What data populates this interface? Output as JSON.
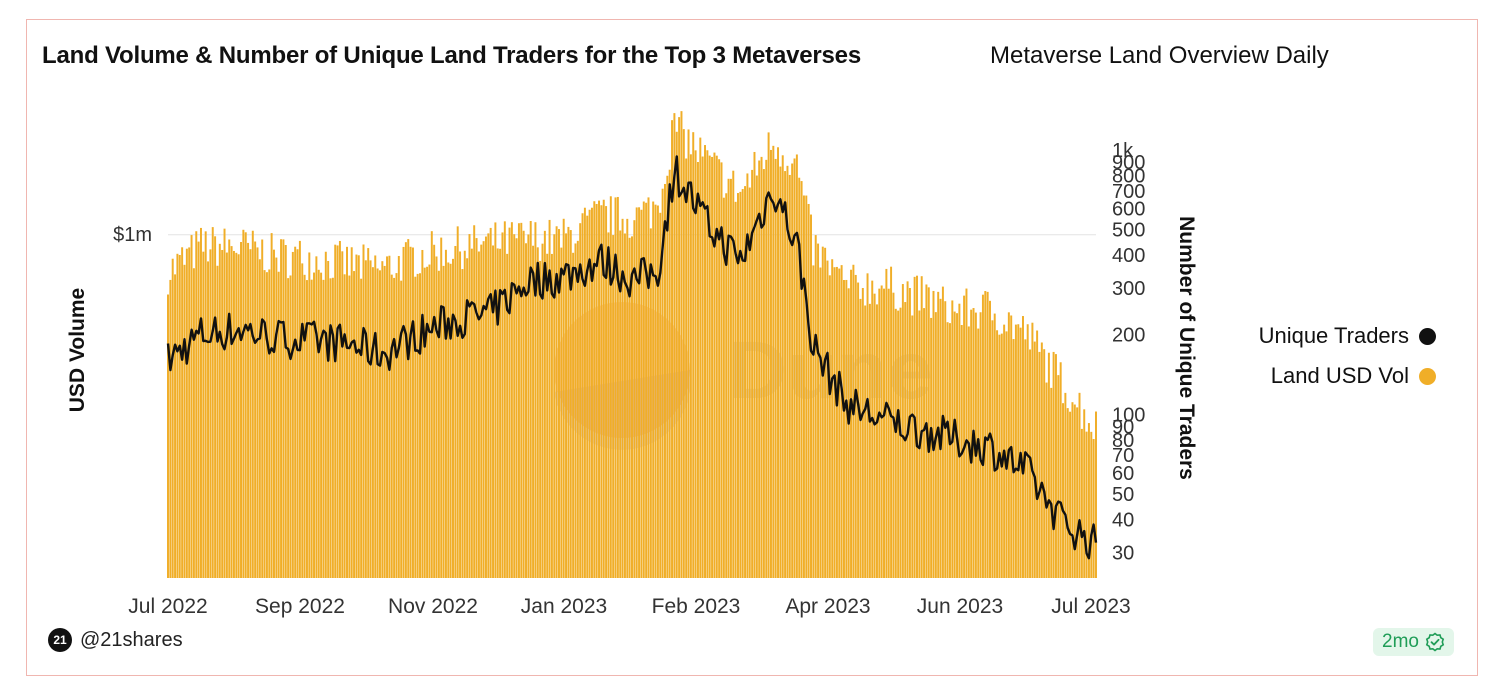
{
  "chart": {
    "title": "Land Volume & Number of Unique Land Traders for the Top 3 Metaverses",
    "subtitle": "Metaverse Land Overview Daily"
  },
  "footer": {
    "user": "@21shares",
    "avatar_text": "21",
    "age_badge": "2mo"
  },
  "watermark": "Dune",
  "colors": {
    "bars": "#f0ae28",
    "line": "#111111",
    "badge_bg": "#e3f6ea",
    "badge_fg": "#1f9d57"
  },
  "chart_data": {
    "type": "bar",
    "combo": "bars with line overlay, dual log axes",
    "x_range": [
      "2022-07-01",
      "2023-07-30"
    ],
    "x_ticks": [
      "Jul 2022",
      "Sep 2022",
      "Nov 2022",
      "Jan 2023",
      "Feb 2023",
      "Apr 2023",
      "Jun 2023",
      "Jul 2023"
    ],
    "y_left": {
      "label": "USD Volume",
      "scale": "log",
      "ticks": [
        "$1m"
      ],
      "tick_values": [
        1000000
      ]
    },
    "y_right": {
      "label": "Number of Unique Traders",
      "scale": "log",
      "ticks": [
        "30",
        "40",
        "50",
        "60",
        "70",
        "80",
        "90",
        "100",
        "200",
        "300",
        "400",
        "500",
        "600",
        "700",
        "800",
        "900",
        "1k"
      ],
      "tick_values": [
        30,
        40,
        50,
        60,
        70,
        80,
        90,
        100,
        200,
        300,
        400,
        500,
        600,
        700,
        800,
        900,
        1000
      ]
    },
    "legend": {
      "position": "right",
      "entries": [
        {
          "name": "Unique Traders",
          "color": "#111111"
        },
        {
          "name": "Land USD Vol",
          "color": "#f0ae28"
        }
      ]
    },
    "series": [
      {
        "name": "Land USD Vol",
        "type": "bar",
        "axis": "left",
        "points": [
          [
            "2022-07-01",
            650000
          ],
          [
            "2022-07-15",
            880000
          ],
          [
            "2022-08-01",
            870000
          ],
          [
            "2022-08-15",
            790000
          ],
          [
            "2022-09-01",
            760000
          ],
          [
            "2022-09-15",
            720000
          ],
          [
            "2022-10-01",
            680000
          ],
          [
            "2022-10-15",
            790000
          ],
          [
            "2022-11-01",
            860000
          ],
          [
            "2022-11-15",
            910000
          ],
          [
            "2022-12-01",
            960000
          ],
          [
            "2022-12-15",
            940000
          ],
          [
            "2023-01-01",
            1250000
          ],
          [
            "2023-01-15",
            1200000
          ],
          [
            "2023-01-25",
            1400000
          ],
          [
            "2023-02-01",
            3500000
          ],
          [
            "2023-02-15",
            2300000
          ],
          [
            "2023-03-01",
            1600000
          ],
          [
            "2023-03-15",
            2900000
          ],
          [
            "2023-03-25",
            2200000
          ],
          [
            "2023-04-01",
            860000
          ],
          [
            "2023-04-15",
            560000
          ],
          [
            "2023-05-01",
            560000
          ],
          [
            "2023-05-15",
            500000
          ],
          [
            "2023-06-01",
            420000
          ],
          [
            "2023-06-15",
            430000
          ],
          [
            "2023-07-01",
            320000
          ],
          [
            "2023-07-15",
            190000
          ],
          [
            "2023-07-30",
            110000
          ]
        ]
      },
      {
        "name": "Unique Traders",
        "type": "line",
        "axis": "right",
        "points": [
          [
            "2022-07-01",
            160
          ],
          [
            "2022-07-15",
            200
          ],
          [
            "2022-08-01",
            210
          ],
          [
            "2022-08-15",
            195
          ],
          [
            "2022-09-01",
            190
          ],
          [
            "2022-09-15",
            185
          ],
          [
            "2022-10-01",
            170
          ],
          [
            "2022-10-15",
            200
          ],
          [
            "2022-11-01",
            230
          ],
          [
            "2022-11-15",
            240
          ],
          [
            "2022-12-01",
            320
          ],
          [
            "2022-12-15",
            330
          ],
          [
            "2023-01-01",
            380
          ],
          [
            "2023-01-15",
            320
          ],
          [
            "2023-01-25",
            350
          ],
          [
            "2023-02-01",
            850
          ],
          [
            "2023-02-15",
            520
          ],
          [
            "2023-03-01",
            380
          ],
          [
            "2023-03-15",
            720
          ],
          [
            "2023-03-25",
            440
          ],
          [
            "2023-04-01",
            180
          ],
          [
            "2023-04-15",
            110
          ],
          [
            "2023-05-01",
            95
          ],
          [
            "2023-05-15",
            88
          ],
          [
            "2023-06-01",
            80
          ],
          [
            "2023-06-15",
            75
          ],
          [
            "2023-07-01",
            60
          ],
          [
            "2023-07-15",
            40
          ],
          [
            "2023-07-30",
            32
          ]
        ]
      }
    ]
  }
}
